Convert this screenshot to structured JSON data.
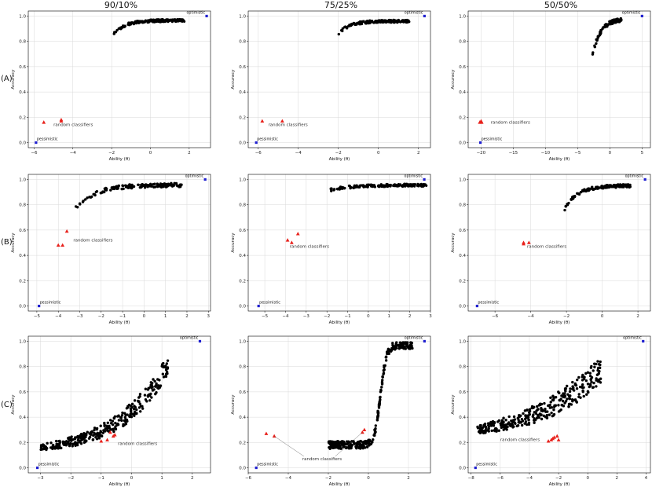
{
  "figure": {
    "columns": [
      "90/10%",
      "75/25%",
      "50/50%"
    ],
    "rows": [
      "(A)",
      "(B)",
      "(C)"
    ],
    "xlabel": "Ability (θ)",
    "ylabel": "Accuracy",
    "optimistic_label": "optimistic",
    "pessimistic_label": "pessimistic",
    "random_label": "random classifiers"
  },
  "colors": {
    "points": "#000000",
    "random": "#e8211b",
    "bounds": "#1f1fd0",
    "grid": "#d9d9d9"
  },
  "chart_data": [
    {
      "id": "A-90/10",
      "type": "scatter",
      "xlabel": "Ability (θ)",
      "ylabel": "Accuracy",
      "xlim": [
        -6.3,
        3.1
      ],
      "ylim": [
        -0.04,
        1.04
      ],
      "xticks": [
        -6,
        -4,
        -2,
        0,
        2
      ],
      "yticks": [
        0.0,
        0.2,
        0.4,
        0.6,
        0.8,
        1.0
      ],
      "optimistic": [
        2.9,
        1.0
      ],
      "pessimistic": [
        -5.9,
        0.0
      ],
      "random_points": [
        [
          -5.5,
          0.16
        ],
        [
          -4.6,
          0.17
        ],
        [
          -4.6,
          0.18
        ]
      ],
      "random_label_at": [
        -5.0,
        0.13
      ],
      "trend": {
        "kind": "sat",
        "xmin": -2.0,
        "xmax": 1.8,
        "y0": 0.84,
        "y1": 0.965,
        "k": 1.6,
        "n": 140,
        "noise": 0.01
      }
    },
    {
      "id": "A-75/25",
      "type": "scatter",
      "xlabel": "Ability (θ)",
      "ylabel": "Accuracy",
      "xlim": [
        -6.5,
        2.6
      ],
      "ylim": [
        -0.04,
        1.04
      ],
      "xticks": [
        -6,
        -4,
        -2,
        0,
        2
      ],
      "yticks": [
        0.0,
        0.2,
        0.4,
        0.6,
        0.8,
        1.0
      ],
      "optimistic": [
        2.3,
        1.0
      ],
      "pessimistic": [
        -6.1,
        0.0
      ],
      "random_points": [
        [
          -5.8,
          0.17
        ],
        [
          -4.8,
          0.17
        ]
      ],
      "random_label_at": [
        -5.5,
        0.13
      ],
      "trend": {
        "kind": "sat",
        "xmin": -2.0,
        "xmax": 1.6,
        "y0": 0.86,
        "y1": 0.96,
        "k": 1.6,
        "n": 140,
        "noise": 0.01
      }
    },
    {
      "id": "A-50/50",
      "type": "scatter",
      "xlabel": "Ability (θ)",
      "ylabel": "Accuracy",
      "xlim": [
        -22,
        6.3
      ],
      "ylim": [
        -0.04,
        1.04
      ],
      "xticks": [
        -20,
        -15,
        -10,
        -5,
        0,
        5
      ],
      "yticks": [
        0.0,
        0.2,
        0.4,
        0.6,
        0.8,
        1.0
      ],
      "optimistic": [
        5.0,
        1.0
      ],
      "pessimistic": [
        -20.1,
        0.0
      ],
      "random_points": [
        [
          -20.0,
          0.17
        ],
        [
          -20.2,
          0.16
        ],
        [
          -19.9,
          0.16
        ]
      ],
      "random_label_at": [
        -18.5,
        0.15
      ],
      "trend": {
        "kind": "sat",
        "xmin": -2.7,
        "xmax": 1.8,
        "y0": 0.69,
        "y1": 0.97,
        "k": 0.9,
        "n": 110,
        "noise": 0.015
      }
    },
    {
      "id": "B-90/10",
      "type": "scatter",
      "xlabel": "Ability (θ)",
      "ylabel": "Accuracy",
      "xlim": [
        -5.4,
        3.1
      ],
      "ylim": [
        -0.04,
        1.04
      ],
      "xticks": [
        -5,
        -4,
        -3,
        -2,
        -1,
        0,
        1,
        2,
        3
      ],
      "yticks": [
        0.0,
        0.2,
        0.4,
        0.6,
        0.8,
        1.0
      ],
      "optimistic": [
        2.85,
        1.0
      ],
      "pessimistic": [
        -4.9,
        0.0
      ],
      "random_points": [
        [
          -4.0,
          0.48
        ],
        [
          -3.8,
          0.48
        ],
        [
          -3.6,
          0.59
        ]
      ],
      "random_label_at": [
        -3.3,
        0.51
      ],
      "trend": {
        "kind": "sat",
        "xmin": -3.2,
        "xmax": 1.8,
        "y0": 0.77,
        "y1": 0.955,
        "k": 1.4,
        "n": 140,
        "noise": 0.015
      }
    },
    {
      "id": "B-75/25",
      "type": "scatter",
      "xlabel": "Ability (θ)",
      "ylabel": "Accuracy",
      "xlim": [
        -5.8,
        3.0
      ],
      "ylim": [
        -0.04,
        1.04
      ],
      "xticks": [
        -5,
        -4,
        -3,
        -2,
        -1,
        0,
        1,
        2,
        3
      ],
      "yticks": [
        0.0,
        0.2,
        0.4,
        0.6,
        0.8,
        1.0
      ],
      "optimistic": [
        2.7,
        1.0
      ],
      "pessimistic": [
        -5.3,
        0.0
      ],
      "random_points": [
        [
          -3.9,
          0.52
        ],
        [
          -3.7,
          0.5
        ],
        [
          -3.4,
          0.57
        ]
      ],
      "random_label_at": [
        -3.8,
        0.46
      ],
      "trend": {
        "kind": "sat",
        "xmin": -2.0,
        "xmax": 2.8,
        "y0": 0.91,
        "y1": 0.955,
        "k": 1.2,
        "n": 150,
        "noise": 0.01
      }
    },
    {
      "id": "B-50/50",
      "type": "scatter",
      "xlabel": "Ability (θ)",
      "ylabel": "Accuracy",
      "xlim": [
        -7.5,
        2.7
      ],
      "ylim": [
        -0.04,
        1.04
      ],
      "xticks": [
        -6,
        -4,
        -2,
        0,
        2
      ],
      "yticks": [
        0.0,
        0.2,
        0.4,
        0.6,
        0.8,
        1.0
      ],
      "optimistic": [
        2.4,
        1.0
      ],
      "pessimistic": [
        -7.0,
        0.0
      ],
      "random_points": [
        [
          -4.4,
          0.5
        ],
        [
          -4.4,
          0.49
        ],
        [
          -4.1,
          0.5
        ]
      ],
      "random_label_at": [
        -4.2,
        0.46
      ],
      "trend": {
        "kind": "sat",
        "xmin": -2.2,
        "xmax": 1.6,
        "y0": 0.74,
        "y1": 0.95,
        "k": 1.3,
        "n": 150,
        "noise": 0.012
      }
    },
    {
      "id": "C-90/10",
      "type": "scatter",
      "xlabel": "Ability (θ)",
      "ylabel": "Accuracy",
      "xlim": [
        -3.4,
        2.6
      ],
      "ylim": [
        -0.04,
        1.04
      ],
      "xticks": [
        -3,
        -2,
        -1,
        0,
        1,
        2
      ],
      "yticks": [
        0.0,
        0.2,
        0.4,
        0.6,
        0.8,
        1.0
      ],
      "optimistic": [
        2.25,
        1.0
      ],
      "pessimistic": [
        -3.1,
        0.0
      ],
      "random_points": [
        [
          -0.8,
          0.22
        ],
        [
          -0.6,
          0.25
        ],
        [
          -0.7,
          0.28
        ],
        [
          -0.55,
          0.26
        ],
        [
          -1.0,
          0.21
        ]
      ],
      "random_label_at": [
        -0.45,
        0.18
      ],
      "trend": {
        "kind": "exp",
        "xmin": -3.0,
        "xmax": 1.2,
        "y0": 0.16,
        "y1": 0.82,
        "k": 2.6,
        "n": 320,
        "noise": 0.06
      }
    },
    {
      "id": "C-75/25",
      "type": "scatter",
      "xlabel": "Ability (θ)",
      "ylabel": "Accuracy",
      "xlim": [
        -6.0,
        3.1
      ],
      "ylim": [
        -0.04,
        1.04
      ],
      "xticks": [
        -6,
        -4,
        -2,
        0,
        2
      ],
      "yticks": [
        0.0,
        0.2,
        0.4,
        0.6,
        0.8,
        1.0
      ],
      "optimistic": [
        2.8,
        1.0
      ],
      "pessimistic": [
        -5.6,
        0.0
      ],
      "random_points": [
        [
          -5.1,
          0.27
        ],
        [
          -4.7,
          0.25
        ],
        [
          -0.3,
          0.28
        ],
        [
          -0.2,
          0.3
        ]
      ],
      "random_label_at": [
        -3.3,
        0.06
      ],
      "trend": {
        "kind": "sig",
        "xmin": -2.0,
        "xmax": 2.2,
        "y0": 0.18,
        "y1": 0.97,
        "k": 2.2,
        "mid": 0.6,
        "n": 330,
        "noise": 0.03
      }
    },
    {
      "id": "C-50/50",
      "type": "scatter",
      "xlabel": "Ability (θ)",
      "ylabel": "Accuracy",
      "xlim": [
        -8.2,
        4.3
      ],
      "ylim": [
        -0.04,
        1.04
      ],
      "xticks": [
        -8,
        -6,
        -4,
        -2,
        0,
        2,
        4
      ],
      "yticks": [
        0.0,
        0.2,
        0.4,
        0.6,
        0.8,
        1.0
      ],
      "optimistic": [
        3.8,
        1.0
      ],
      "pessimistic": [
        -7.7,
        0.0
      ],
      "random_points": [
        [
          -2.7,
          0.21
        ],
        [
          -2.5,
          0.22
        ],
        [
          -2.3,
          0.24
        ],
        [
          -2.1,
          0.25
        ],
        [
          -2.4,
          0.23
        ],
        [
          -2.0,
          0.22
        ]
      ],
      "random_label_at": [
        -6.0,
        0.21
      ],
      "trend": {
        "kind": "exp",
        "xmin": -7.6,
        "xmax": 0.9,
        "y0": 0.3,
        "y1": 0.78,
        "k": 1.8,
        "n": 340,
        "noise": 0.08
      }
    }
  ]
}
